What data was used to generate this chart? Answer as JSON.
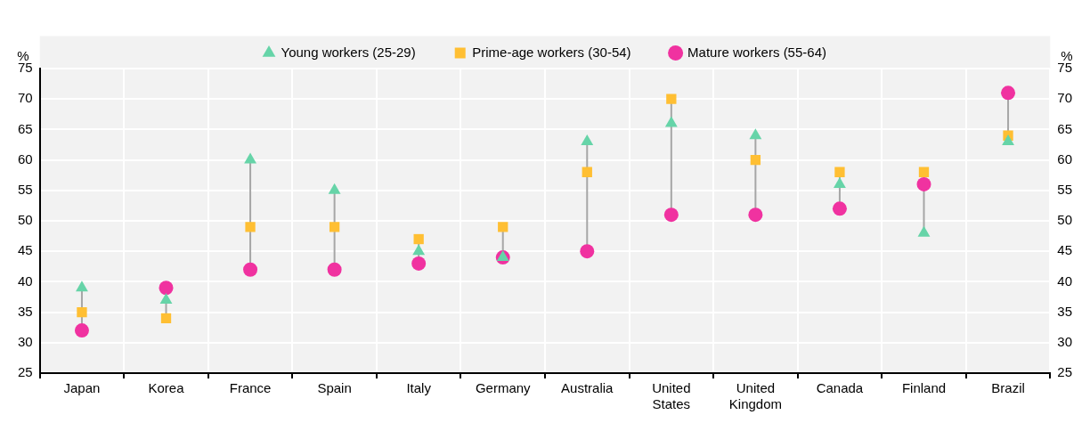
{
  "chart_data": {
    "type": "scatter",
    "categories": [
      "Japan",
      "Korea",
      "France",
      "Spain",
      "Italy",
      "Germany",
      "Australia",
      "United States",
      "United Kingdom",
      "Canada",
      "Finland",
      "Brazil"
    ],
    "series": [
      {
        "name": "Young workers (25-29)",
        "color": "#66d4a8",
        "marker": "triangle",
        "values": [
          39,
          37,
          60,
          55,
          45,
          44,
          63,
          66,
          64,
          56,
          48,
          63
        ]
      },
      {
        "name": "Prime-age workers (30-54)",
        "color": "#ffbf33",
        "marker": "square",
        "values": [
          35,
          34,
          49,
          49,
          47,
          49,
          58,
          70,
          60,
          58,
          58,
          64
        ]
      },
      {
        "name": "Mature workers (55-64)",
        "color": "#f032a0",
        "marker": "circle",
        "values": [
          32,
          39,
          42,
          42,
          43,
          44,
          45,
          51,
          51,
          52,
          56,
          71
        ]
      }
    ],
    "ylabel": "%",
    "y2label": "%",
    "ylim": [
      25,
      75
    ],
    "yticks": [
      25,
      30,
      35,
      40,
      45,
      50,
      55,
      60,
      65,
      70,
      75
    ],
    "y2lim": [
      25,
      75
    ],
    "y2ticks": [
      25,
      30,
      35,
      40,
      45,
      50,
      55,
      60,
      65,
      70,
      75
    ],
    "grid": true,
    "legend": "top"
  }
}
